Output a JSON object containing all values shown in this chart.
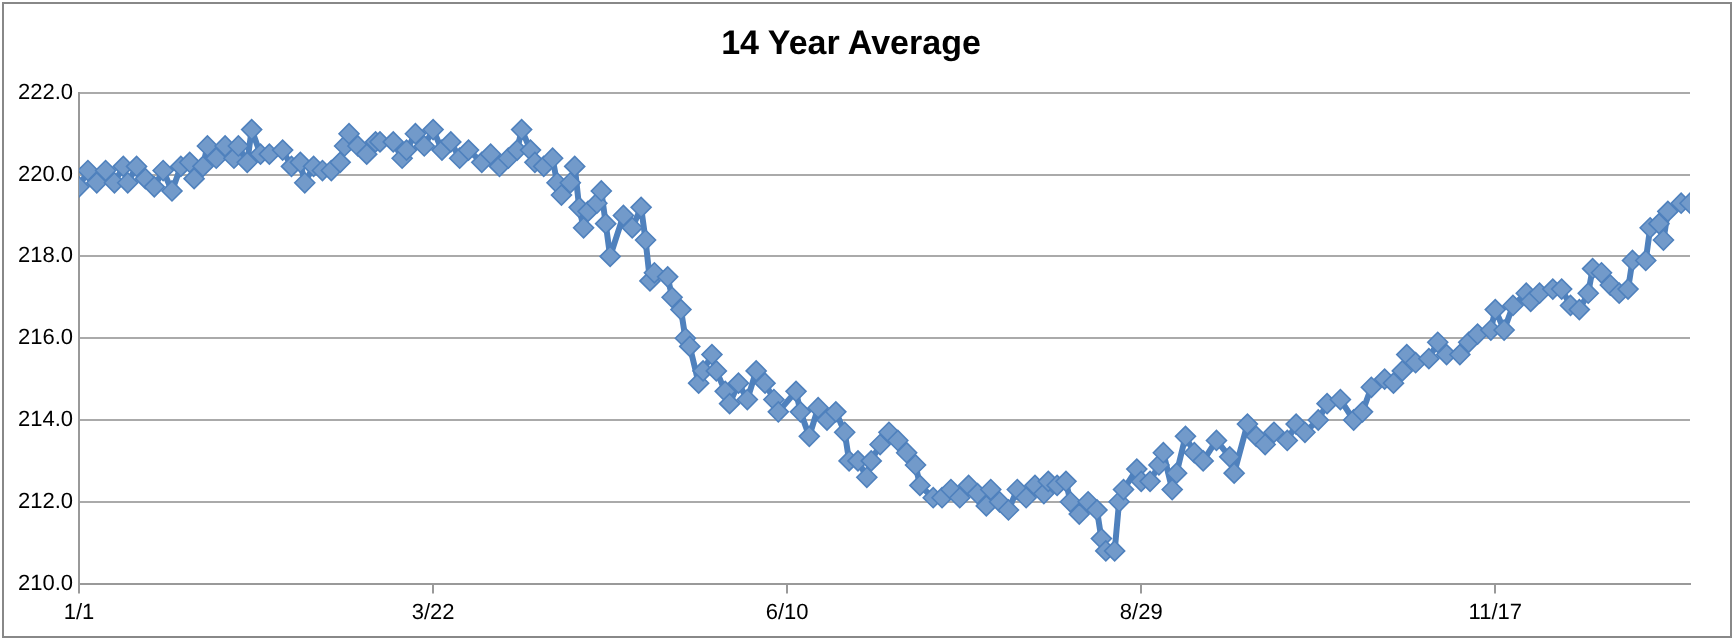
{
  "chart_data": {
    "type": "line",
    "title": "14 Year Average",
    "x": [
      "--01-01",
      "--01-03",
      "--01-05",
      "--01-07",
      "--01-09",
      "--01-11",
      "--01-12",
      "--01-14",
      "--01-16",
      "--01-18",
      "--01-20",
      "--01-22",
      "--01-24",
      "--01-26",
      "--01-27",
      "--01-29",
      "--01-30",
      "--02-01",
      "--02-03",
      "--02-05",
      "--02-06",
      "--02-08",
      "--02-09",
      "--02-11",
      "--02-13",
      "--02-16",
      "--02-18",
      "--02-20",
      "--02-21",
      "--02-23",
      "--02-25",
      "--02-27",
      "--03-01",
      "--03-02",
      "--03-03",
      "--03-05",
      "--03-07",
      "--03-09",
      "--03-10",
      "--03-13",
      "--03-15",
      "--03-16",
      "--03-18",
      "--03-20",
      "--03-22",
      "--03-24",
      "--03-26",
      "--03-28",
      "--03-30",
      "--04-02",
      "--04-04",
      "--04-06",
      "--04-08",
      "--04-10",
      "--04-11",
      "--04-13",
      "--04-14",
      "--04-16",
      "--04-18",
      "--04-19",
      "--04-20",
      "--04-22",
      "--04-23",
      "--04-24",
      "--04-25",
      "--04-26",
      "--04-28",
      "--04-29",
      "--04-30",
      "--05-01",
      "--05-04",
      "--05-06",
      "--05-08",
      "--05-09",
      "--05-10",
      "--05-11",
      "--05-14",
      "--05-15",
      "--05-17",
      "--05-18",
      "--05-19",
      "--05-21",
      "--05-22",
      "--05-24",
      "--05-25",
      "--05-27",
      "--05-28",
      "--05-30",
      "--06-01",
      "--06-03",
      "--06-05",
      "--06-07",
      "--06-08",
      "--06-12",
      "--06-13",
      "--06-15",
      "--06-17",
      "--06-19",
      "--06-21",
      "--06-23",
      "--06-24",
      "--06-26",
      "--06-28",
      "--06-29",
      "--07-01",
      "--07-03",
      "--07-05",
      "--07-07",
      "--07-09",
      "--07-10",
      "--07-13",
      "--07-15",
      "--07-17",
      "--07-19",
      "--07-21",
      "--07-23",
      "--07-25",
      "--07-26",
      "--07-28",
      "--07-30",
      "--08-01",
      "--08-03",
      "--08-05",
      "--08-07",
      "--08-08",
      "--08-10",
      "--08-12",
      "--08-13",
      "--08-15",
      "--08-17",
      "--08-19",
      "--08-20",
      "--08-21",
      "--08-23",
      "--08-24",
      "--08-25",
      "--08-28",
      "--08-29",
      "--08-31",
      "--09-02",
      "--09-03",
      "--09-05",
      "--09-06",
      "--09-08",
      "--09-10",
      "--09-12",
      "--09-15",
      "--09-18",
      "--09-19",
      "--09-22",
      "--09-24",
      "--09-26",
      "--09-28",
      "--10-01",
      "--10-03",
      "--10-05",
      "--10-08",
      "--10-10",
      "--10-13",
      "--10-16",
      "--10-18",
      "--10-20",
      "--10-23",
      "--10-25",
      "--10-27",
      "--10-28",
      "--10-30",
      "--11-02",
      "--11-04",
      "--11-06",
      "--11-09",
      "--11-11",
      "--11-13",
      "--11-16",
      "--11-17",
      "--11-19",
      "--11-21",
      "--11-24",
      "--11-25",
      "--11-27",
      "--11-30",
      "--12-02",
      "--12-04",
      "--12-06",
      "--12-08",
      "--12-09",
      "--12-11",
      "--12-13",
      "--12-15",
      "--12-17",
      "--12-18",
      "--12-21",
      "--12-22",
      "--12-24",
      "--12-25",
      "--12-26",
      "--12-29",
      "--12-31"
    ],
    "series": [
      {
        "color": "#4f81bd",
        "values": [
          219.7,
          220.1,
          219.8,
          220.1,
          219.8,
          220.2,
          219.8,
          220.2,
          219.9,
          219.7,
          220.1,
          219.6,
          220.2,
          220.3,
          219.9,
          220.2,
          220.7,
          220.4,
          220.7,
          220.4,
          220.7,
          220.3,
          221.1,
          220.5,
          220.5,
          220.6,
          220.2,
          220.3,
          219.8,
          220.2,
          220.1,
          220.1,
          220.3,
          220.7,
          221.0,
          220.7,
          220.5,
          220.8,
          220.8,
          220.8,
          220.4,
          220.6,
          221.0,
          220.7,
          221.1,
          220.6,
          220.8,
          220.4,
          220.6,
          220.3,
          220.5,
          220.2,
          220.4,
          220.6,
          221.1,
          220.6,
          220.3,
          220.2,
          220.4,
          219.8,
          219.5,
          219.8,
          220.2,
          219.2,
          218.7,
          219.1,
          219.3,
          219.6,
          218.8,
          218.0,
          219.0,
          218.7,
          219.2,
          218.4,
          217.4,
          217.6,
          217.5,
          217.0,
          216.7,
          216.0,
          215.8,
          214.9,
          215.2,
          215.6,
          215.2,
          214.7,
          214.4,
          214.9,
          214.5,
          215.2,
          214.9,
          214.5,
          214.2,
          214.7,
          214.2,
          213.6,
          214.3,
          214.0,
          214.2,
          213.7,
          213.0,
          213.0,
          212.6,
          213.0,
          213.4,
          213.7,
          213.5,
          213.2,
          212.9,
          212.4,
          212.1,
          212.1,
          212.3,
          212.1,
          212.4,
          212.2,
          211.9,
          212.3,
          212.0,
          211.8,
          212.3,
          212.1,
          212.4,
          212.2,
          212.5,
          212.4,
          212.5,
          212.0,
          211.7,
          212.0,
          211.8,
          211.1,
          210.8,
          210.8,
          212.0,
          212.3,
          212.8,
          212.5,
          212.5,
          212.9,
          213.2,
          212.3,
          212.7,
          213.6,
          213.2,
          213.0,
          213.5,
          213.1,
          212.7,
          213.9,
          213.6,
          213.4,
          213.7,
          213.5,
          213.9,
          213.7,
          214.0,
          214.4,
          214.5,
          214.0,
          214.2,
          214.8,
          215.0,
          214.9,
          215.2,
          215.6,
          215.4,
          215.5,
          215.9,
          215.6,
          215.6,
          215.9,
          216.1,
          216.2,
          216.7,
          216.2,
          216.8,
          217.1,
          216.9,
          217.1,
          217.2,
          217.2,
          216.8,
          216.7,
          217.1,
          217.7,
          217.6,
          217.3,
          217.1,
          217.2,
          217.9,
          217.9,
          218.7,
          218.8,
          218.4,
          219.1,
          219.3,
          219.3
        ]
      }
    ],
    "xlim": [
      "--01-01",
      "--12-31"
    ],
    "xticks": [
      {
        "value": "--01-01",
        "label": "1/1"
      },
      {
        "value": "--03-22",
        "label": "3/22"
      },
      {
        "value": "--06-10",
        "label": "6/10"
      },
      {
        "value": "--08-29",
        "label": "8/29"
      },
      {
        "value": "--11-17",
        "label": "11/17"
      }
    ],
    "ylim": [
      210,
      222
    ],
    "yticks": [
      {
        "value": 210,
        "label": "210.0"
      },
      {
        "value": 212,
        "label": "212.0"
      },
      {
        "value": 214,
        "label": "214.0"
      },
      {
        "value": 216,
        "label": "216.0"
      },
      {
        "value": 218,
        "label": "218.0"
      },
      {
        "value": 220,
        "label": "220.0"
      },
      {
        "value": 222,
        "label": "222.0"
      }
    ],
    "grid": "y",
    "marker": "diamond",
    "line_style": "solid",
    "legend": false
  }
}
